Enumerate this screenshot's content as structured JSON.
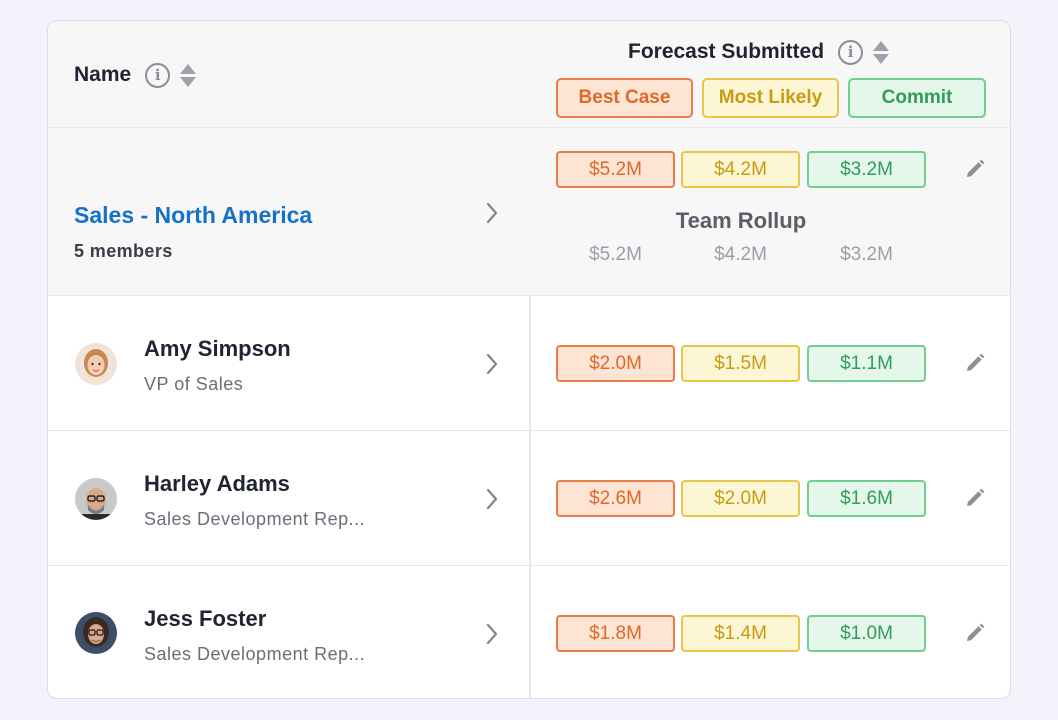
{
  "header": {
    "name_label": "Name",
    "forecast_label": "Forecast Submitted",
    "legend": {
      "best_case": "Best Case",
      "most_likely": "Most Likely",
      "commit": "Commit"
    }
  },
  "team": {
    "title": "Sales - North America",
    "members": "5 members",
    "values": {
      "best_case": "$5.2M",
      "most_likely": "$4.2M",
      "commit": "$3.2M"
    },
    "rollup_label": "Team Rollup",
    "rollup": {
      "best_case": "$5.2M",
      "most_likely": "$4.2M",
      "commit": "$3.2M"
    }
  },
  "people": [
    {
      "name": "Amy Simpson",
      "role": "VP of Sales",
      "best_case": "$2.0M",
      "most_likely": "$1.5M",
      "commit": "$1.1M"
    },
    {
      "name": "Harley Adams",
      "role": "Sales Development Rep...",
      "best_case": "$2.6M",
      "most_likely": "$2.0M",
      "commit": "$1.6M"
    },
    {
      "name": "Jess Foster",
      "role": "Sales Development Rep...",
      "best_case": "$1.8M",
      "most_likely": "$1.4M",
      "commit": "$1.0M"
    }
  ],
  "colors": {
    "best_case": "#e0682a",
    "most_likely": "#c79c12",
    "commit": "#2f9e56",
    "link": "#1672c8",
    "background": "#f6f2fc"
  }
}
